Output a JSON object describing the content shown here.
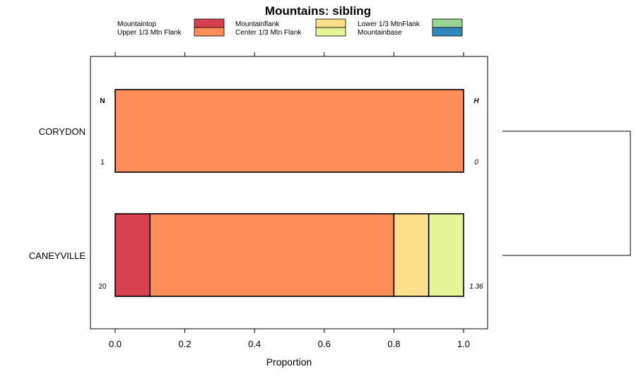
{
  "chart_data": {
    "type": "bar",
    "orientation": "horizontal",
    "stacked": true,
    "title": "Mountains: sibling",
    "xlabel": "Proportion",
    "xlim": [
      -0.07,
      1.07
    ],
    "xticks": [
      0.0,
      0.2,
      0.4,
      0.6,
      0.8,
      1.0
    ],
    "xtick_labels": [
      "0.0",
      "0.2",
      "0.4",
      "0.6",
      "0.8",
      "1.0"
    ],
    "legend_position": "top",
    "legend": [
      {
        "name": "Mountaintop",
        "color": "#d7404f"
      },
      {
        "name": "Upper 1/3 Mtn Flank",
        "color": "#fc8d59"
      },
      {
        "name": "Mountainflank",
        "color": "#fee08b"
      },
      {
        "name": "Center 1/3 Mtn Flank",
        "color": "#e6f598"
      },
      {
        "name": "Lower 1/3 MtnFlank",
        "color": "#99d594"
      },
      {
        "name": "Mountainbase",
        "color": "#3288bd"
      }
    ],
    "n_header": "N",
    "h_header": "H",
    "categories": [
      "CORYDON",
      "CANEYVILLE"
    ],
    "n_values": [
      "1",
      "20"
    ],
    "h_values": [
      "0",
      "1.36"
    ],
    "series": [
      {
        "name": "Mountaintop",
        "values": [
          0,
          0.1
        ]
      },
      {
        "name": "Upper 1/3 Mtn Flank",
        "values": [
          1.0,
          0.7
        ]
      },
      {
        "name": "Mountainflank",
        "values": [
          0,
          0.1
        ]
      },
      {
        "name": "Center 1/3 Mtn Flank",
        "values": [
          0,
          0.1
        ]
      },
      {
        "name": "Lower 1/3 MtnFlank",
        "values": [
          0,
          0
        ]
      },
      {
        "name": "Mountainbase",
        "values": [
          0,
          0
        ]
      }
    ],
    "dendrogram": {
      "type": "bracket",
      "joins": [
        "CORYDON",
        "CANEYVILLE"
      ]
    }
  }
}
